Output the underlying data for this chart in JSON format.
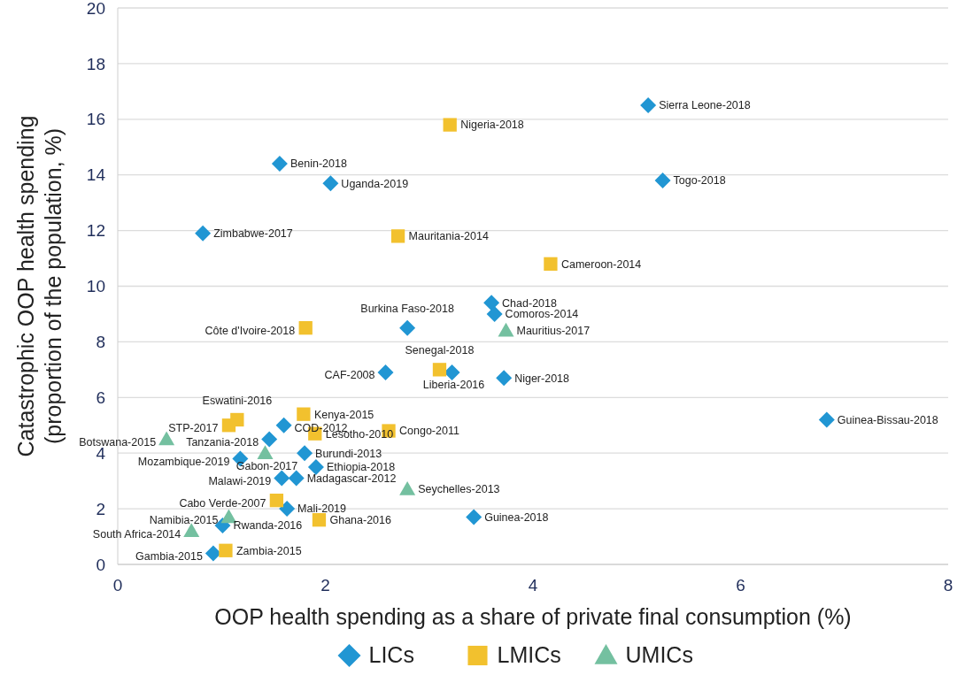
{
  "chart_data": {
    "type": "scatter",
    "xlabel": "OOP health spending as a share of private final consumption (%)",
    "ylabel": "Catastrophic OOP health spending\n(proportion of the population, %)",
    "xlim": [
      0,
      8
    ],
    "xticks": [
      0,
      2,
      4,
      6,
      8
    ],
    "ylim": [
      0,
      20
    ],
    "yticks": [
      0,
      2,
      4,
      6,
      8,
      10,
      12,
      14,
      16,
      18,
      20
    ],
    "grid": "y",
    "legend": "bottom",
    "series": [
      {
        "name": "LICs",
        "color": "#2196d3",
        "marker": "diamond",
        "x": [
          5.11,
          1.56,
          2.05,
          5.25,
          0.82,
          3.6,
          3.63,
          2.79,
          2.58,
          3.22,
          3.72,
          6.83,
          1.6,
          1.46,
          1.18,
          1.8,
          1.91,
          1.58,
          1.72,
          1.63,
          3.43,
          1.01,
          0.92
        ],
        "values": [
          16.5,
          14.4,
          13.7,
          13.8,
          11.9,
          9.4,
          9.0,
          8.5,
          6.9,
          6.9,
          6.7,
          5.2,
          5.0,
          4.5,
          3.8,
          4.0,
          3.5,
          3.1,
          3.1,
          2.0,
          1.7,
          1.4,
          0.4
        ]
      },
      {
        "name": "LMICs",
        "color": "#f2c12e",
        "marker": "square",
        "x": [
          3.2,
          2.7,
          4.17,
          1.81,
          3.1,
          1.79,
          1.15,
          1.07,
          1.9,
          2.61,
          1.53,
          1.94,
          1.04
        ],
        "values": [
          15.8,
          11.8,
          10.8,
          8.5,
          7.0,
          5.4,
          5.2,
          5.0,
          4.7,
          4.8,
          2.3,
          1.6,
          0.5
        ]
      },
      {
        "name": "UMICs",
        "color": "#74c0a0",
        "marker": "triangle",
        "x": [
          3.74,
          0.47,
          1.42,
          2.79,
          1.07,
          0.71
        ],
        "values": [
          8.4,
          4.5,
          4.0,
          2.7,
          1.7,
          1.2
        ]
      }
    ],
    "annotations": [
      {
        "text": "Sierra Leone-2018",
        "x": 5.11,
        "y": 16.5
      },
      {
        "text": "Benin-2018",
        "x": 1.56,
        "y": 14.4
      },
      {
        "text": "Uganda-2019",
        "x": 2.05,
        "y": 13.7
      },
      {
        "text": "Togo-2018",
        "x": 5.25,
        "y": 13.8
      },
      {
        "text": "Zimbabwe-2017",
        "x": 0.82,
        "y": 11.9
      },
      {
        "text": "Chad-2018",
        "x": 3.6,
        "y": 9.4
      },
      {
        "text": "Comoros-2014",
        "x": 3.63,
        "y": 9.0
      },
      {
        "text": "Burkina Faso-2018",
        "x": 2.79,
        "y": 8.5
      },
      {
        "text": "CAF-2008",
        "x": 2.58,
        "y": 6.9
      },
      {
        "text": "Liberia-2016",
        "x": 3.22,
        "y": 6.9
      },
      {
        "text": "Niger-2018",
        "x": 3.72,
        "y": 6.7
      },
      {
        "text": "Guinea-Bissau-2018",
        "x": 6.83,
        "y": 5.2
      },
      {
        "text": "COD-2012",
        "x": 1.6,
        "y": 5.0
      },
      {
        "text": "Tanzania-2018",
        "x": 1.46,
        "y": 4.5
      },
      {
        "text": "Mozambique-2019",
        "x": 1.18,
        "y": 3.8
      },
      {
        "text": "Burundi-2013",
        "x": 1.8,
        "y": 4.0
      },
      {
        "text": "Ethiopia-2018",
        "x": 1.91,
        "y": 3.5
      },
      {
        "text": "Malawi-2019",
        "x": 1.58,
        "y": 3.1
      },
      {
        "text": "Madagascar-2012",
        "x": 1.72,
        "y": 3.1
      },
      {
        "text": "Mali-2019",
        "x": 1.63,
        "y": 2.0
      },
      {
        "text": "Guinea-2018",
        "x": 3.43,
        "y": 1.7
      },
      {
        "text": "Rwanda-2016",
        "x": 1.01,
        "y": 1.4
      },
      {
        "text": "Gambia-2015",
        "x": 0.92,
        "y": 0.4
      },
      {
        "text": "Nigeria-2018",
        "x": 3.2,
        "y": 15.8
      },
      {
        "text": "Mauritania-2014",
        "x": 2.7,
        "y": 11.8
      },
      {
        "text": "Cameroon-2014",
        "x": 4.17,
        "y": 10.8
      },
      {
        "text": "Côte d'Ivoire-2018",
        "x": 1.81,
        "y": 8.5
      },
      {
        "text": "Senegal-2018",
        "x": 3.1,
        "y": 7.0
      },
      {
        "text": "Kenya-2015",
        "x": 1.79,
        "y": 5.4
      },
      {
        "text": "Eswatini-2016",
        "x": 1.15,
        "y": 5.2
      },
      {
        "text": "STP-2017",
        "x": 1.07,
        "y": 5.0
      },
      {
        "text": "Lesotho-2010",
        "x": 1.9,
        "y": 4.7
      },
      {
        "text": "Congo-2011",
        "x": 2.61,
        "y": 4.8
      },
      {
        "text": "Cabo Verde-2007",
        "x": 1.53,
        "y": 2.3
      },
      {
        "text": "Ghana-2016",
        "x": 1.94,
        "y": 1.6
      },
      {
        "text": "Zambia-2015",
        "x": 1.04,
        "y": 0.5
      },
      {
        "text": "Mauritius-2017",
        "x": 3.74,
        "y": 8.4
      },
      {
        "text": "Botswana-2015",
        "x": 0.47,
        "y": 4.5
      },
      {
        "text": "Gabon-2017",
        "x": 1.42,
        "y": 4.0
      },
      {
        "text": "Seychelles-2013",
        "x": 2.79,
        "y": 2.7
      },
      {
        "text": "Namibia-2015",
        "x": 1.07,
        "y": 1.7
      },
      {
        "text": "South Africa-2014",
        "x": 0.71,
        "y": 1.2
      }
    ]
  }
}
